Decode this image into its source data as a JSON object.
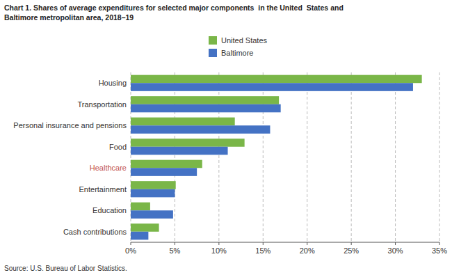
{
  "chart_data": {
    "type": "bar",
    "orientation": "horizontal",
    "title": "Chart 1. Shares of average expenditures for selected major components  in the United  States and\nBaltimore metropolitan area, 2018–19",
    "categories": [
      "Housing",
      "Transportation",
      "Personal insurance and pensions",
      "Food",
      "Healthcare",
      "Entertainment",
      "Education",
      "Cash contributions"
    ],
    "category_colors": [
      null,
      null,
      null,
      null,
      "#c0504d",
      null,
      null,
      null
    ],
    "series": [
      {
        "name": "United States",
        "color": "#7ab648",
        "values": [
          33.0,
          16.8,
          11.8,
          12.9,
          8.1,
          5.1,
          2.2,
          3.2
        ]
      },
      {
        "name": "Baltimore",
        "color": "#4472c4",
        "values": [
          32.0,
          17.0,
          15.8,
          11.0,
          7.5,
          5.0,
          4.8,
          2.0
        ]
      }
    ],
    "xlim": [
      0,
      35
    ],
    "xticks": [
      {
        "value": 0,
        "label": "0%"
      },
      {
        "value": 5,
        "label": "5%"
      },
      {
        "value": 10,
        "label": "10%"
      },
      {
        "value": 15,
        "label": "15%"
      },
      {
        "value": 20,
        "label": "20%"
      },
      {
        "value": 25,
        "label": "25%"
      },
      {
        "value": 30,
        "label": "30%"
      },
      {
        "value": 35,
        "label": "35%"
      }
    ],
    "grid": true,
    "legend": "top",
    "annotations": [
      "Source: U.S. Bureau of Labor Statistics."
    ]
  }
}
